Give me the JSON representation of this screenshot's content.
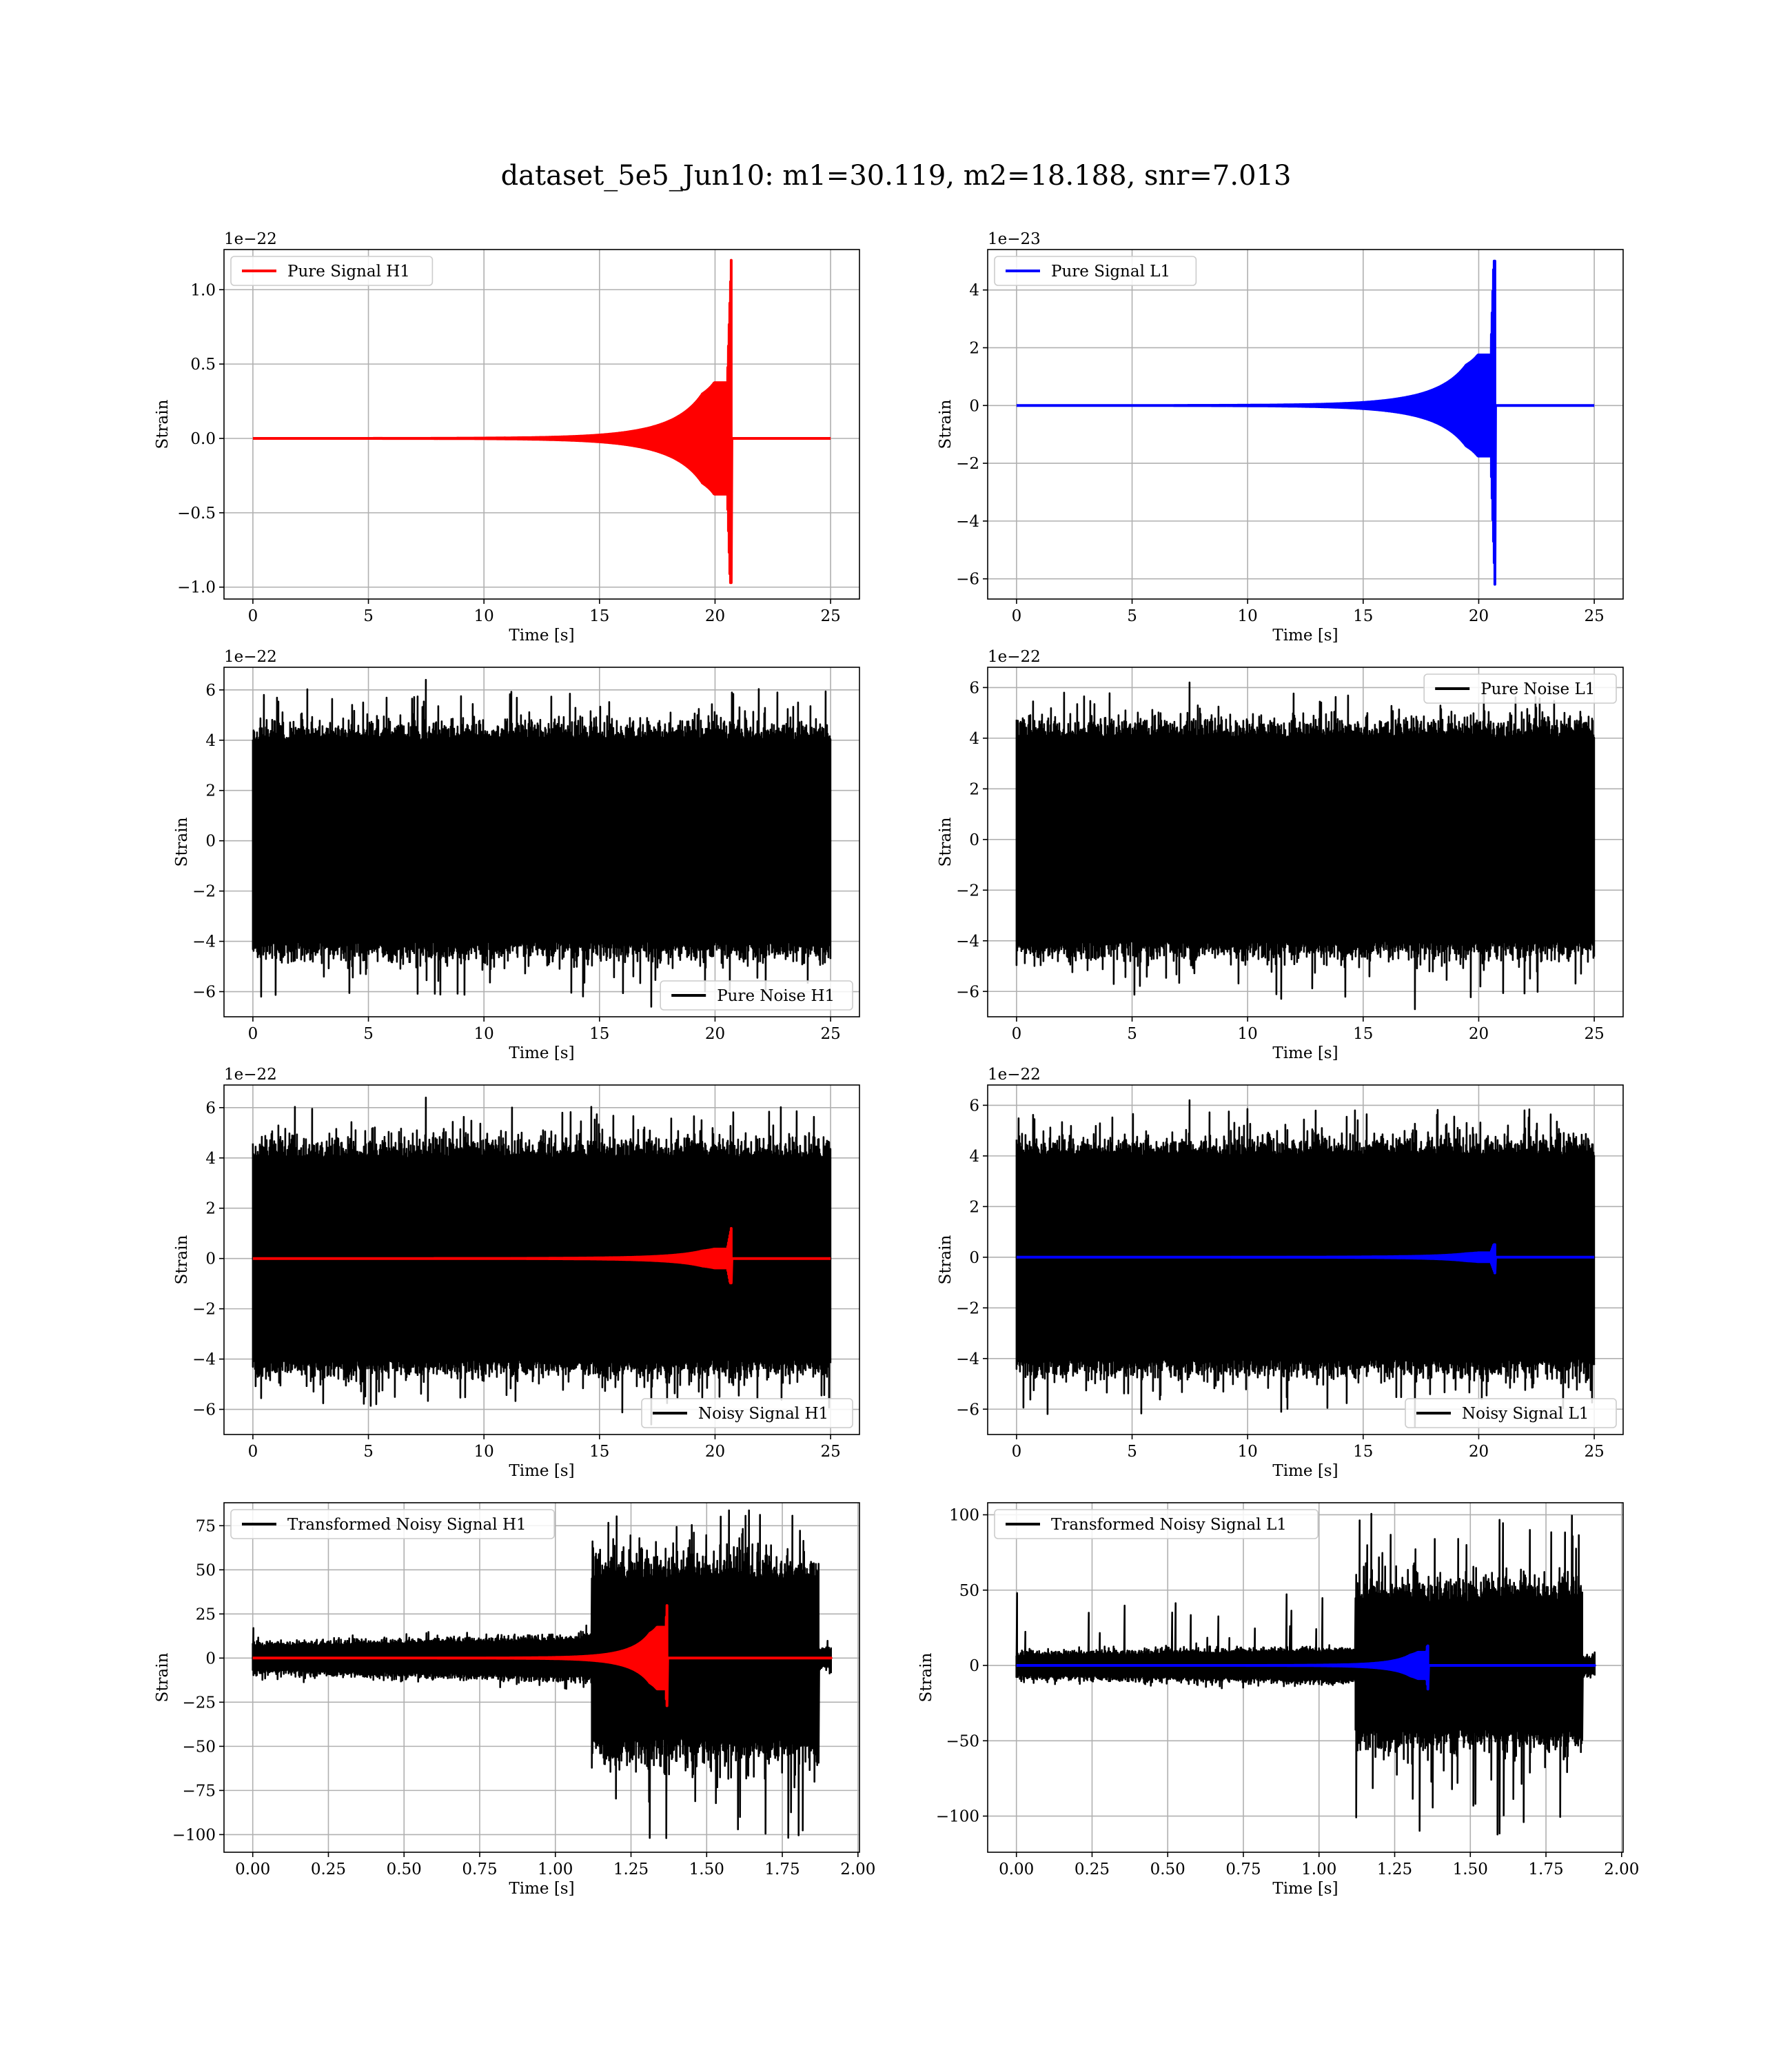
{
  "figure": {
    "title": "dataset_5e5_Jun10: m1=30.119, m2=18.188, snr=7.013"
  },
  "chart_data": [
    {
      "id": "pure_signal_h1",
      "type": "line",
      "col": 0,
      "row": 0,
      "xlabel": "Time [s]",
      "ylabel": "Strain",
      "offset_text": "1e−22",
      "xlim": [
        -1.25,
        26.25
      ],
      "ylim": [
        -1.08,
        1.27
      ],
      "xticks": [
        0,
        5,
        10,
        15,
        20,
        25
      ],
      "xtick_labels": [
        "0",
        "5",
        "10",
        "15",
        "20",
        "25"
      ],
      "yticks": [
        -1.0,
        -0.5,
        0.0,
        0.5,
        1.0
      ],
      "ytick_labels": [
        "−1.0",
        "−0.5",
        "0.0",
        "0.5",
        "1.0"
      ],
      "legend": {
        "location": "upper left",
        "entries": [
          {
            "label": "Pure Signal H1",
            "color": "#ff0000"
          }
        ]
      },
      "series": [
        {
          "name": "Pure Signal H1",
          "kind": "chirp",
          "color": "#ff0000",
          "t_merge": 20.7,
          "t_end": 25,
          "amp_max": 1.2,
          "amp_min": 0.97,
          "inspiral_amp": 0.3,
          "amp_at_15": 0.01
        }
      ]
    },
    {
      "id": "pure_signal_l1",
      "type": "line",
      "col": 1,
      "row": 0,
      "xlabel": "Time [s]",
      "ylabel": "Strain",
      "offset_text": "1e−23",
      "xlim": [
        -1.25,
        26.25
      ],
      "ylim": [
        -6.7,
        5.4
      ],
      "xticks": [
        0,
        5,
        10,
        15,
        20,
        25
      ],
      "xtick_labels": [
        "0",
        "5",
        "10",
        "15",
        "20",
        "25"
      ],
      "yticks": [
        -6,
        -4,
        -2,
        0,
        2,
        4
      ],
      "ytick_labels": [
        "−6",
        "−4",
        "−2",
        "0",
        "2",
        "4"
      ],
      "legend": {
        "location": "upper left",
        "entries": [
          {
            "label": "Pure Signal L1",
            "color": "#0000ff"
          }
        ]
      },
      "series": [
        {
          "name": "Pure Signal L1",
          "kind": "chirp",
          "color": "#0000ff",
          "t_merge": 20.7,
          "t_end": 25,
          "amp_max": 5.0,
          "amp_min": 6.2,
          "inspiral_amp": 1.4,
          "amp_at_15": 0.05
        }
      ]
    },
    {
      "id": "pure_noise_h1",
      "type": "line",
      "col": 0,
      "row": 1,
      "xlabel": "Time [s]",
      "ylabel": "Strain",
      "offset_text": "1e−22",
      "xlim": [
        -1.25,
        26.25
      ],
      "ylim": [
        -7.0,
        6.9
      ],
      "xticks": [
        0,
        5,
        10,
        15,
        20,
        25
      ],
      "xtick_labels": [
        "0",
        "5",
        "10",
        "15",
        "20",
        "25"
      ],
      "yticks": [
        -6,
        -4,
        -2,
        0,
        2,
        4,
        6
      ],
      "ytick_labels": [
        "−6",
        "−4",
        "−2",
        "0",
        "2",
        "4",
        "6"
      ],
      "legend": {
        "location": "lower right",
        "entries": [
          {
            "label": "Pure Noise H1",
            "color": "#000000"
          }
        ]
      },
      "series": [
        {
          "name": "Pure Noise H1",
          "kind": "noise",
          "color": "#000000",
          "t_end": 25,
          "body": 4.0,
          "peak_max": 6.4,
          "peak_min": -6.6
        }
      ]
    },
    {
      "id": "pure_noise_l1",
      "type": "line",
      "col": 1,
      "row": 1,
      "xlabel": "Time [s]",
      "ylabel": "Strain",
      "offset_text": "1e−22",
      "xlim": [
        -1.25,
        26.25
      ],
      "ylim": [
        -7.0,
        6.8
      ],
      "xticks": [
        0,
        5,
        10,
        15,
        20,
        25
      ],
      "xtick_labels": [
        "0",
        "5",
        "10",
        "15",
        "20",
        "25"
      ],
      "yticks": [
        -6,
        -4,
        -2,
        0,
        2,
        4,
        6
      ],
      "ytick_labels": [
        "−6",
        "−4",
        "−2",
        "0",
        "2",
        "4",
        "6"
      ],
      "legend": {
        "location": "upper right",
        "entries": [
          {
            "label": "Pure Noise L1",
            "color": "#000000"
          }
        ]
      },
      "series": [
        {
          "name": "Pure Noise L1",
          "kind": "noise",
          "color": "#000000",
          "t_end": 25,
          "body": 4.0,
          "peak_max": 6.2,
          "peak_min": -6.7
        }
      ]
    },
    {
      "id": "noisy_signal_h1",
      "type": "line",
      "col": 0,
      "row": 2,
      "xlabel": "Time [s]",
      "ylabel": "Strain",
      "offset_text": "1e−22",
      "xlim": [
        -1.25,
        26.25
      ],
      "ylim": [
        -7.0,
        6.9
      ],
      "xticks": [
        0,
        5,
        10,
        15,
        20,
        25
      ],
      "xtick_labels": [
        "0",
        "5",
        "10",
        "15",
        "20",
        "25"
      ],
      "yticks": [
        -6,
        -4,
        -2,
        0,
        2,
        4,
        6
      ],
      "ytick_labels": [
        "−6",
        "−4",
        "−2",
        "0",
        "2",
        "4",
        "6"
      ],
      "legend": {
        "location": "lower right",
        "entries": [
          {
            "label": "Noisy Signal H1",
            "color": "#000000"
          }
        ]
      },
      "series": [
        {
          "kind": "noise",
          "color": "#000000",
          "t_end": 25,
          "body": 4.0,
          "peak_max": 6.4,
          "peak_min": -6.6
        },
        {
          "kind": "chirp",
          "color": "#ff0000",
          "t_merge": 20.7,
          "t_end": 25,
          "amp_max": 1.2,
          "amp_min": 0.97,
          "inspiral_amp": 0.3,
          "amp_at_15": 0.01
        }
      ]
    },
    {
      "id": "noisy_signal_l1",
      "type": "line",
      "col": 1,
      "row": 2,
      "xlabel": "Time [s]",
      "ylabel": "Strain",
      "offset_text": "1e−22",
      "xlim": [
        -1.25,
        26.25
      ],
      "ylim": [
        -7.0,
        6.8
      ],
      "xticks": [
        0,
        5,
        10,
        15,
        20,
        25
      ],
      "xtick_labels": [
        "0",
        "5",
        "10",
        "15",
        "20",
        "25"
      ],
      "yticks": [
        -6,
        -4,
        -2,
        0,
        2,
        4,
        6
      ],
      "ytick_labels": [
        "−6",
        "−4",
        "−2",
        "0",
        "2",
        "4",
        "6"
      ],
      "legend": {
        "location": "lower right",
        "entries": [
          {
            "label": "Noisy Signal L1",
            "color": "#000000"
          }
        ]
      },
      "series": [
        {
          "kind": "noise",
          "color": "#000000",
          "t_end": 25,
          "body": 4.0,
          "peak_max": 6.2,
          "peak_min": -6.7
        },
        {
          "kind": "chirp",
          "color": "#0000ff",
          "t_merge": 20.7,
          "t_end": 25,
          "amp_max": 0.5,
          "amp_min": 0.62,
          "inspiral_amp": 0.14,
          "amp_at_15": 0.005
        }
      ]
    },
    {
      "id": "transformed_noisy_signal_h1",
      "type": "line",
      "col": 0,
      "row": 3,
      "xlabel": "Time [s]",
      "ylabel": "Strain",
      "offset_text": "",
      "xlim": [
        -0.095,
        2.005
      ],
      "ylim": [
        -110,
        88
      ],
      "xticks": [
        0,
        0.25,
        0.5,
        0.75,
        1.0,
        1.25,
        1.5,
        1.75,
        2.0
      ],
      "xtick_labels": [
        "0.00",
        "0.25",
        "0.50",
        "0.75",
        "1.00",
        "1.25",
        "1.50",
        "1.75",
        "2.00"
      ],
      "yticks": [
        -100,
        -75,
        -50,
        -25,
        0,
        25,
        50,
        75
      ],
      "ytick_labels": [
        "−100",
        "−75",
        "−50",
        "−25",
        "0",
        "25",
        "50",
        "75"
      ],
      "legend": {
        "location": "upper left",
        "entries": [
          {
            "label": "Transformed Noisy Signal H1",
            "color": "#000000"
          }
        ]
      },
      "series": [
        {
          "kind": "tnoise",
          "color": "#000000",
          "t_end": 1.91,
          "t_jump": 1.12,
          "t_drop": 1.87,
          "pre_amp": [
            6,
            10
          ],
          "pre_peak": 17,
          "post_body": 45,
          "peak_max": 85,
          "peak_min": -105
        },
        {
          "kind": "chirp",
          "color": "#ff0000",
          "t_merge": 1.37,
          "t_end": 1.91,
          "amp_max": 33,
          "amp_min": 27,
          "inspiral_amp": 14,
          "amp_at_15": 0.5,
          "t_start_scale": 0.7
        }
      ]
    },
    {
      "id": "transformed_noisy_signal_l1",
      "type": "line",
      "col": 1,
      "row": 3,
      "xlabel": "Time [s]",
      "ylabel": "Strain",
      "offset_text": "",
      "xlim": [
        -0.095,
        2.005
      ],
      "ylim": [
        -124,
        108
      ],
      "xticks": [
        0,
        0.25,
        0.5,
        0.75,
        1.0,
        1.25,
        1.5,
        1.75,
        2.0
      ],
      "xtick_labels": [
        "0.00",
        "0.25",
        "0.50",
        "0.75",
        "1.00",
        "1.25",
        "1.50",
        "1.75",
        "2.00"
      ],
      "yticks": [
        -100,
        -50,
        0,
        50,
        100
      ],
      "ytick_labels": [
        "−100",
        "−50",
        "0",
        "50",
        "100"
      ],
      "legend": {
        "location": "upper left",
        "entries": [
          {
            "label": "Transformed Noisy Signal L1",
            "color": "#000000"
          }
        ]
      },
      "series": [
        {
          "kind": "tnoise",
          "color": "#000000",
          "t_end": 1.91,
          "t_jump": 1.12,
          "t_drop": 1.87,
          "pre_amp": [
            6,
            9
          ],
          "pre_peak": 48,
          "post_body": 42,
          "peak_max": 101,
          "peak_min": -114
        },
        {
          "kind": "chirp",
          "color": "#0000ff",
          "t_merge": 1.36,
          "t_end": 1.91,
          "amp_max": 13,
          "amp_min": 16,
          "inspiral_amp": 7,
          "amp_at_15": 0.3,
          "t_start_scale": 0.7
        }
      ]
    }
  ]
}
